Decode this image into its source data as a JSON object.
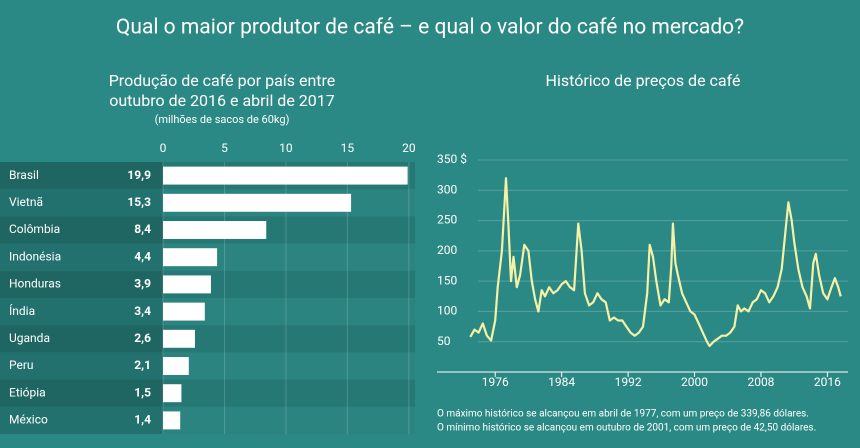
{
  "title": "Qual o maior produtor de café – e qual o valor do café no mercado?",
  "chart_data": [
    {
      "type": "hbar",
      "title": "Produção de café por país entre\noutubro de 2016 e abril de 2017",
      "subtitle": "(milhões de sacos de 60kg)",
      "categories": [
        "Brasil",
        "Vietnã",
        "Colômbia",
        "Indonésia",
        "Honduras",
        "Índia",
        "Uganda",
        "Peru",
        "Etiópia",
        "México"
      ],
      "values": [
        19.9,
        15.3,
        8.4,
        4.4,
        3.9,
        3.4,
        2.6,
        2.1,
        1.5,
        1.4
      ],
      "value_labels": [
        "19,9",
        "15,3",
        "8,4",
        "4,4",
        "3,9",
        "3,4",
        "2,6",
        "2,1",
        "1,5",
        "1,4"
      ],
      "color": "#ffffff",
      "xlim": [
        0,
        20.5
      ],
      "xticks": [
        0,
        5,
        10,
        15,
        20
      ],
      "grid": true
    },
    {
      "type": "line",
      "title": "Histórico de preços de café",
      "x": [
        1973,
        1973.5,
        1974,
        1974.5,
        1975,
        1975.5,
        1976,
        1976.3,
        1976.8,
        1977.3,
        1977.6,
        1977.9,
        1978.2,
        1978.6,
        1979,
        1979.5,
        1980,
        1980.4,
        1980.8,
        1981.2,
        1981.6,
        1982,
        1982.5,
        1983,
        1983.5,
        1984,
        1984.5,
        1985,
        1985.5,
        1986,
        1986.4,
        1986.8,
        1987.3,
        1987.8,
        1988.3,
        1988.8,
        1989.3,
        1989.8,
        1990.3,
        1990.8,
        1991.3,
        1991.8,
        1992.3,
        1992.8,
        1993.3,
        1993.8,
        1994.3,
        1994.6,
        1995,
        1995.4,
        1995.9,
        1996.4,
        1996.9,
        1997.2,
        1997.4,
        1997.7,
        1998,
        1998.5,
        1999,
        1999.5,
        2000,
        2000.5,
        2001,
        2001.5,
        2001.8,
        2002.3,
        2002.8,
        2003.3,
        2003.8,
        2004.3,
        2004.8,
        2005.2,
        2005.6,
        2006,
        2006.5,
        2007,
        2007.5,
        2008,
        2008.5,
        2009,
        2009.5,
        2010,
        2010.5,
        2011,
        2011.3,
        2011.7,
        2012,
        2012.5,
        2013,
        2013.5,
        2013.9,
        2014.3,
        2014.6,
        2015,
        2015.5,
        2016,
        2016.5,
        2016.9,
        2017.3,
        2017.6
      ],
      "values": [
        58,
        70,
        65,
        80,
        60,
        52,
        85,
        140,
        200,
        320,
        240,
        150,
        190,
        140,
        160,
        210,
        200,
        150,
        120,
        100,
        135,
        125,
        140,
        130,
        135,
        145,
        150,
        140,
        135,
        245,
        200,
        130,
        110,
        115,
        130,
        120,
        115,
        85,
        90,
        85,
        85,
        75,
        65,
        60,
        65,
        75,
        130,
        210,
        190,
        150,
        110,
        120,
        115,
        175,
        245,
        180,
        160,
        130,
        115,
        100,
        95,
        80,
        65,
        50,
        43,
        50,
        55,
        60,
        60,
        65,
        75,
        110,
        100,
        105,
        100,
        115,
        120,
        135,
        130,
        115,
        125,
        140,
        170,
        240,
        280,
        250,
        215,
        170,
        140,
        125,
        105,
        180,
        195,
        160,
        130,
        120,
        140,
        155,
        140,
        125
      ],
      "color": "#f6f1a6",
      "xlim": [
        1972,
        2018
      ],
      "xticks": [
        1976,
        1984,
        1992,
        2000,
        2008,
        2016
      ],
      "ylim": [
        0,
        350
      ],
      "yticks": [
        50,
        100,
        150,
        200,
        250,
        300,
        {
          "value": 350,
          "label": "350 $"
        }
      ],
      "grid": true,
      "notes": [
        "O máximo histórico se alcançou em abril de 1977, com um preço de 339,86 dólares.",
        "O mínimo histórico se alcançou em outubro de 2001, com um preço de 42,50 dólares."
      ]
    }
  ]
}
